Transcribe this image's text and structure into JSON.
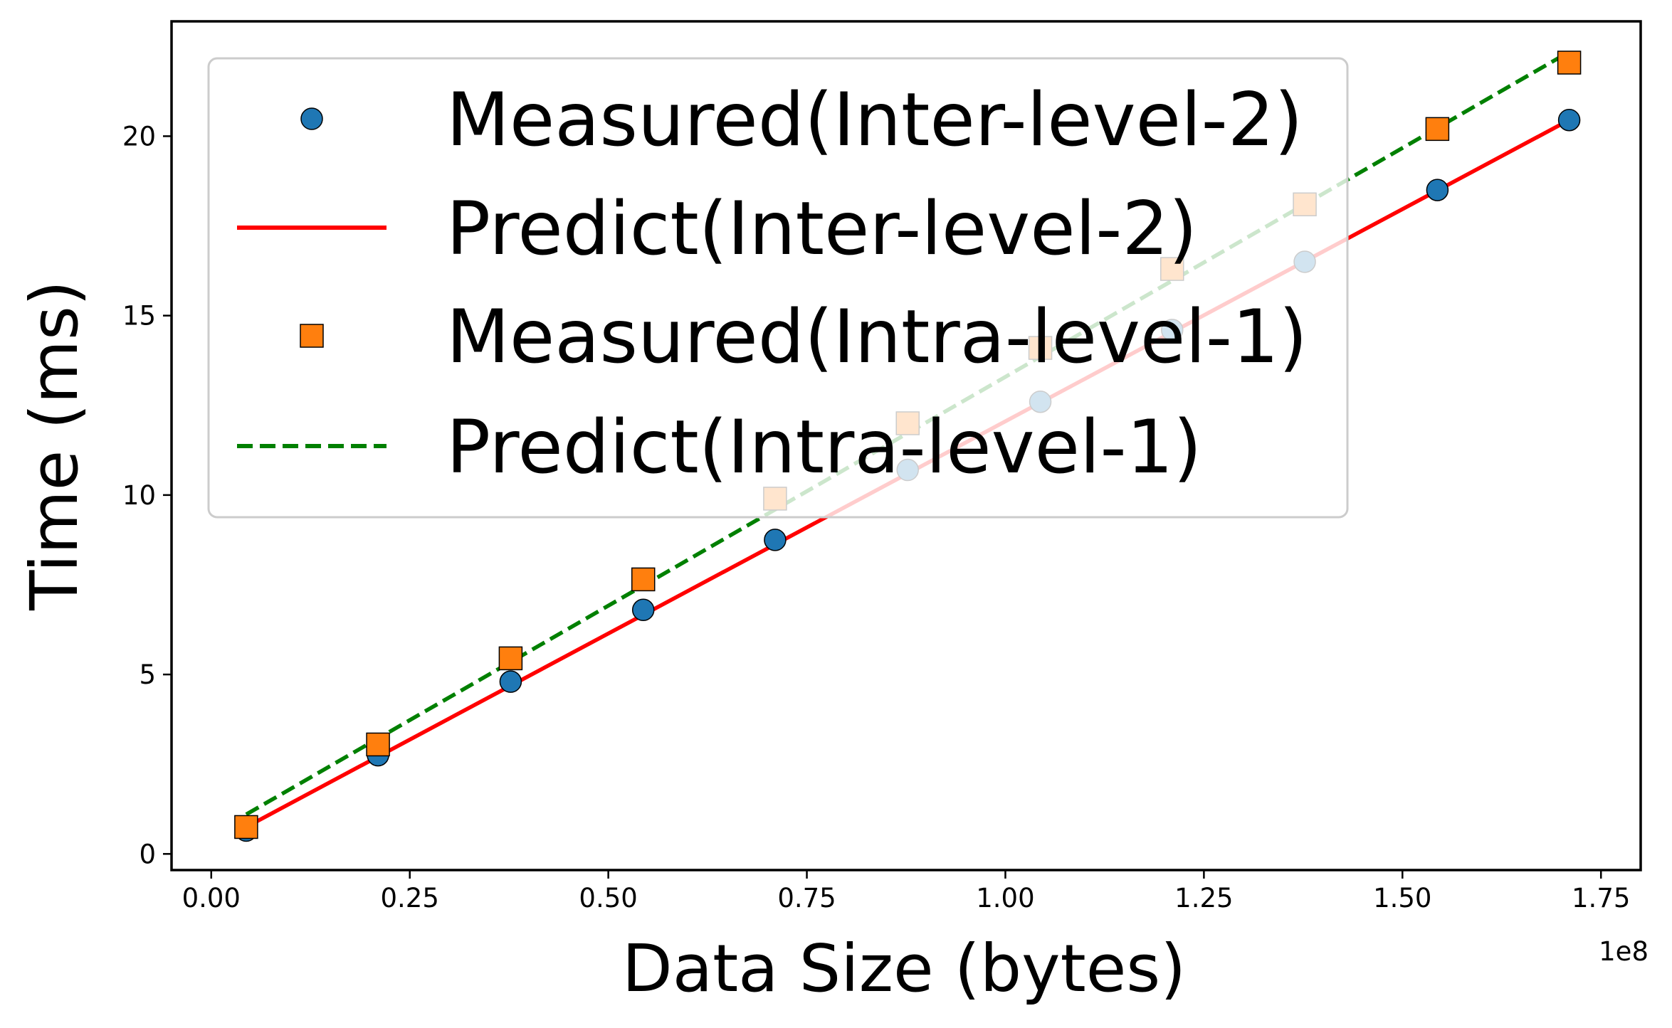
{
  "chart_data": {
    "type": "scatter",
    "xlabel": "Data Size (bytes)",
    "ylabel": "Time (ms)",
    "x_offset_text": "1e8",
    "xlim": [
      -0.05,
      1.8
    ],
    "ylim": [
      -0.45,
      23.2
    ],
    "x_ticks": [
      0.0,
      0.25,
      0.5,
      0.75,
      1.0,
      1.25,
      1.5,
      1.75
    ],
    "x_tick_labels": [
      "0.00",
      "0.25",
      "0.50",
      "0.75",
      "1.00",
      "1.25",
      "1.50",
      "1.75"
    ],
    "y_ticks": [
      0,
      5,
      10,
      15,
      20
    ],
    "y_tick_labels": [
      "0",
      "5",
      "10",
      "15",
      "20"
    ],
    "grid": false,
    "legend_placement": "upper-left",
    "series": [
      {
        "name": "Measured(Inter-level-2)",
        "kind": "marker",
        "marker": "circle",
        "color": "#1f77b4",
        "x": [
          0.044,
          0.21,
          0.377,
          0.544,
          0.71,
          0.877,
          1.044,
          1.21,
          1.377,
          1.544,
          1.71
        ],
        "y": [
          0.65,
          2.75,
          4.8,
          6.8,
          8.75,
          10.7,
          12.6,
          14.6,
          16.5,
          18.5,
          20.45
        ]
      },
      {
        "name": "Predict(Inter-level-2)",
        "kind": "line",
        "dash": "solid",
        "color": "#ff0000",
        "x": [
          0.044,
          1.71
        ],
        "y": [
          0.75,
          20.45
        ]
      },
      {
        "name": "Measured(Intra-level-1)",
        "kind": "marker",
        "marker": "square",
        "color": "#ff7f0e",
        "x": [
          0.044,
          0.21,
          0.377,
          0.544,
          0.71,
          0.877,
          1.044,
          1.21,
          1.377,
          1.544,
          1.71
        ],
        "y": [
          0.75,
          3.05,
          5.45,
          7.65,
          9.9,
          12.0,
          14.1,
          16.3,
          18.1,
          20.2,
          22.05
        ]
      },
      {
        "name": "Predict(Intra-level-1)",
        "kind": "line",
        "dash": "dashed",
        "color": "#008000",
        "x": [
          0.044,
          1.71
        ],
        "y": [
          1.1,
          22.35
        ]
      }
    ]
  }
}
